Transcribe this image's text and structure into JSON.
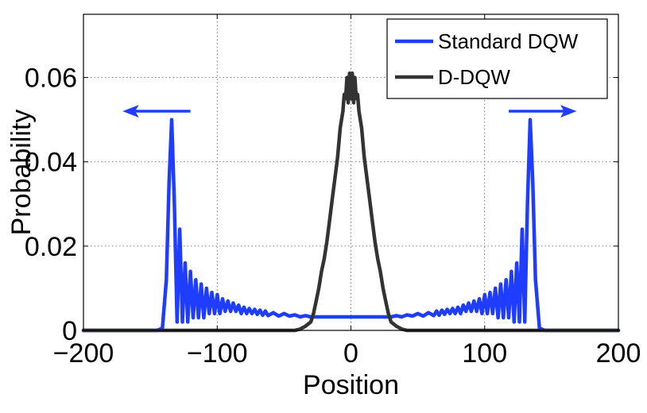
{
  "chart_data": {
    "type": "line",
    "xlabel": "Position",
    "ylabel": "Probability",
    "xlim": [
      -200,
      200
    ],
    "ylim": [
      0,
      0.075
    ],
    "x_ticks": [
      -200,
      -100,
      0,
      100,
      200
    ],
    "x_tick_labels": [
      "−200",
      "−100",
      "0",
      "100",
      "200"
    ],
    "y_ticks": [
      0,
      0.02,
      0.04,
      0.06
    ],
    "y_tick_labels": [
      "0",
      "0.02",
      "0.04",
      "0.06"
    ],
    "grid": true,
    "legend_position": "top-right",
    "series": [
      {
        "name": "Standard DQW",
        "color": "#1f3dff",
        "points": [
          [
            -200,
            0
          ],
          [
            -145,
            0
          ],
          [
            -141,
            0.0005
          ],
          [
            -138,
            0.012
          ],
          [
            -136,
            0.035
          ],
          [
            -134,
            0.05
          ],
          [
            -132,
            0.03
          ],
          [
            -130,
            0.002
          ],
          [
            -128,
            0.024
          ],
          [
            -126,
            0.002
          ],
          [
            -124,
            0.016
          ],
          [
            -122,
            0.002
          ],
          [
            -120,
            0.014
          ],
          [
            -118,
            0.003
          ],
          [
            -116,
            0.012
          ],
          [
            -114,
            0.003
          ],
          [
            -112,
            0.011
          ],
          [
            -110,
            0.003
          ],
          [
            -108,
            0.01
          ],
          [
            -106,
            0.004
          ],
          [
            -104,
            0.009
          ],
          [
            -102,
            0.004
          ],
          [
            -100,
            0.0085
          ],
          [
            -98,
            0.004
          ],
          [
            -96,
            0.0075
          ],
          [
            -94,
            0.0045
          ],
          [
            -92,
            0.007
          ],
          [
            -90,
            0.0045
          ],
          [
            -88,
            0.0065
          ],
          [
            -86,
            0.0045
          ],
          [
            -84,
            0.006
          ],
          [
            -82,
            0.004
          ],
          [
            -80,
            0.0055
          ],
          [
            -78,
            0.004
          ],
          [
            -76,
            0.0052
          ],
          [
            -74,
            0.004
          ],
          [
            -72,
            0.005
          ],
          [
            -70,
            0.0038
          ],
          [
            -68,
            0.0048
          ],
          [
            -66,
            0.0036
          ],
          [
            -64,
            0.0046
          ],
          [
            -62,
            0.0035
          ],
          [
            -58,
            0.0042
          ],
          [
            -54,
            0.0034
          ],
          [
            -50,
            0.004
          ],
          [
            -46,
            0.0034
          ],
          [
            -42,
            0.0037
          ],
          [
            -38,
            0.0032
          ],
          [
            -34,
            0.0035
          ],
          [
            -30,
            0.0032
          ],
          [
            -20,
            0.0032
          ],
          [
            -10,
            0.0032
          ],
          [
            0,
            0.0032
          ],
          [
            10,
            0.0032
          ],
          [
            20,
            0.0032
          ],
          [
            30,
            0.0032
          ],
          [
            34,
            0.0035
          ],
          [
            38,
            0.0032
          ],
          [
            42,
            0.0037
          ],
          [
            46,
            0.0034
          ],
          [
            50,
            0.004
          ],
          [
            54,
            0.0034
          ],
          [
            58,
            0.0042
          ],
          [
            62,
            0.0035
          ],
          [
            64,
            0.0046
          ],
          [
            66,
            0.0036
          ],
          [
            68,
            0.0048
          ],
          [
            70,
            0.0038
          ],
          [
            72,
            0.005
          ],
          [
            74,
            0.004
          ],
          [
            76,
            0.0052
          ],
          [
            78,
            0.004
          ],
          [
            80,
            0.0055
          ],
          [
            82,
            0.004
          ],
          [
            84,
            0.006
          ],
          [
            86,
            0.0045
          ],
          [
            88,
            0.0065
          ],
          [
            90,
            0.0045
          ],
          [
            92,
            0.007
          ],
          [
            94,
            0.0045
          ],
          [
            96,
            0.0075
          ],
          [
            98,
            0.004
          ],
          [
            100,
            0.0085
          ],
          [
            102,
            0.004
          ],
          [
            104,
            0.009
          ],
          [
            106,
            0.004
          ],
          [
            108,
            0.01
          ],
          [
            110,
            0.003
          ],
          [
            112,
            0.011
          ],
          [
            114,
            0.003
          ],
          [
            116,
            0.012
          ],
          [
            118,
            0.003
          ],
          [
            120,
            0.014
          ],
          [
            122,
            0.002
          ],
          [
            124,
            0.016
          ],
          [
            126,
            0.002
          ],
          [
            128,
            0.024
          ],
          [
            130,
            0.002
          ],
          [
            132,
            0.03
          ],
          [
            134,
            0.05
          ],
          [
            136,
            0.035
          ],
          [
            138,
            0.012
          ],
          [
            141,
            0.0005
          ],
          [
            145,
            0
          ],
          [
            200,
            0
          ]
        ]
      },
      {
        "name": "D-DQW",
        "color": "#333333",
        "points": [
          [
            -200,
            0
          ],
          [
            -42,
            0
          ],
          [
            -38,
            0.0003
          ],
          [
            -34,
            0.001
          ],
          [
            -30,
            0.002
          ],
          [
            -28,
            0.004
          ],
          [
            -26,
            0.007
          ],
          [
            -24,
            0.01
          ],
          [
            -22,
            0.014
          ],
          [
            -20,
            0.017
          ],
          [
            -18,
            0.021
          ],
          [
            -16,
            0.026
          ],
          [
            -14,
            0.031
          ],
          [
            -12,
            0.036
          ],
          [
            -10,
            0.041
          ],
          [
            -8,
            0.048
          ],
          [
            -6,
            0.052
          ],
          [
            -5,
            0.056
          ],
          [
            -4,
            0.055
          ],
          [
            -3,
            0.06
          ],
          [
            -2,
            0.054
          ],
          [
            -1,
            0.061
          ],
          [
            0,
            0.055
          ],
          [
            1,
            0.061
          ],
          [
            2,
            0.054
          ],
          [
            3,
            0.06
          ],
          [
            4,
            0.055
          ],
          [
            5,
            0.056
          ],
          [
            6,
            0.052
          ],
          [
            8,
            0.048
          ],
          [
            10,
            0.041
          ],
          [
            12,
            0.036
          ],
          [
            14,
            0.031
          ],
          [
            16,
            0.026
          ],
          [
            18,
            0.021
          ],
          [
            20,
            0.017
          ],
          [
            22,
            0.014
          ],
          [
            24,
            0.01
          ],
          [
            26,
            0.007
          ],
          [
            28,
            0.004
          ],
          [
            30,
            0.002
          ],
          [
            34,
            0.001
          ],
          [
            38,
            0.0003
          ],
          [
            42,
            0
          ],
          [
            200,
            0
          ]
        ]
      }
    ],
    "annotations": [
      {
        "type": "arrow",
        "direction": "left",
        "from": [
          -120,
          0.052
        ],
        "to": [
          -170,
          0.052
        ],
        "color": "#1f3dff"
      },
      {
        "type": "arrow",
        "direction": "right",
        "from": [
          118,
          0.052
        ],
        "to": [
          168,
          0.052
        ],
        "color": "#1f3dff"
      }
    ]
  }
}
